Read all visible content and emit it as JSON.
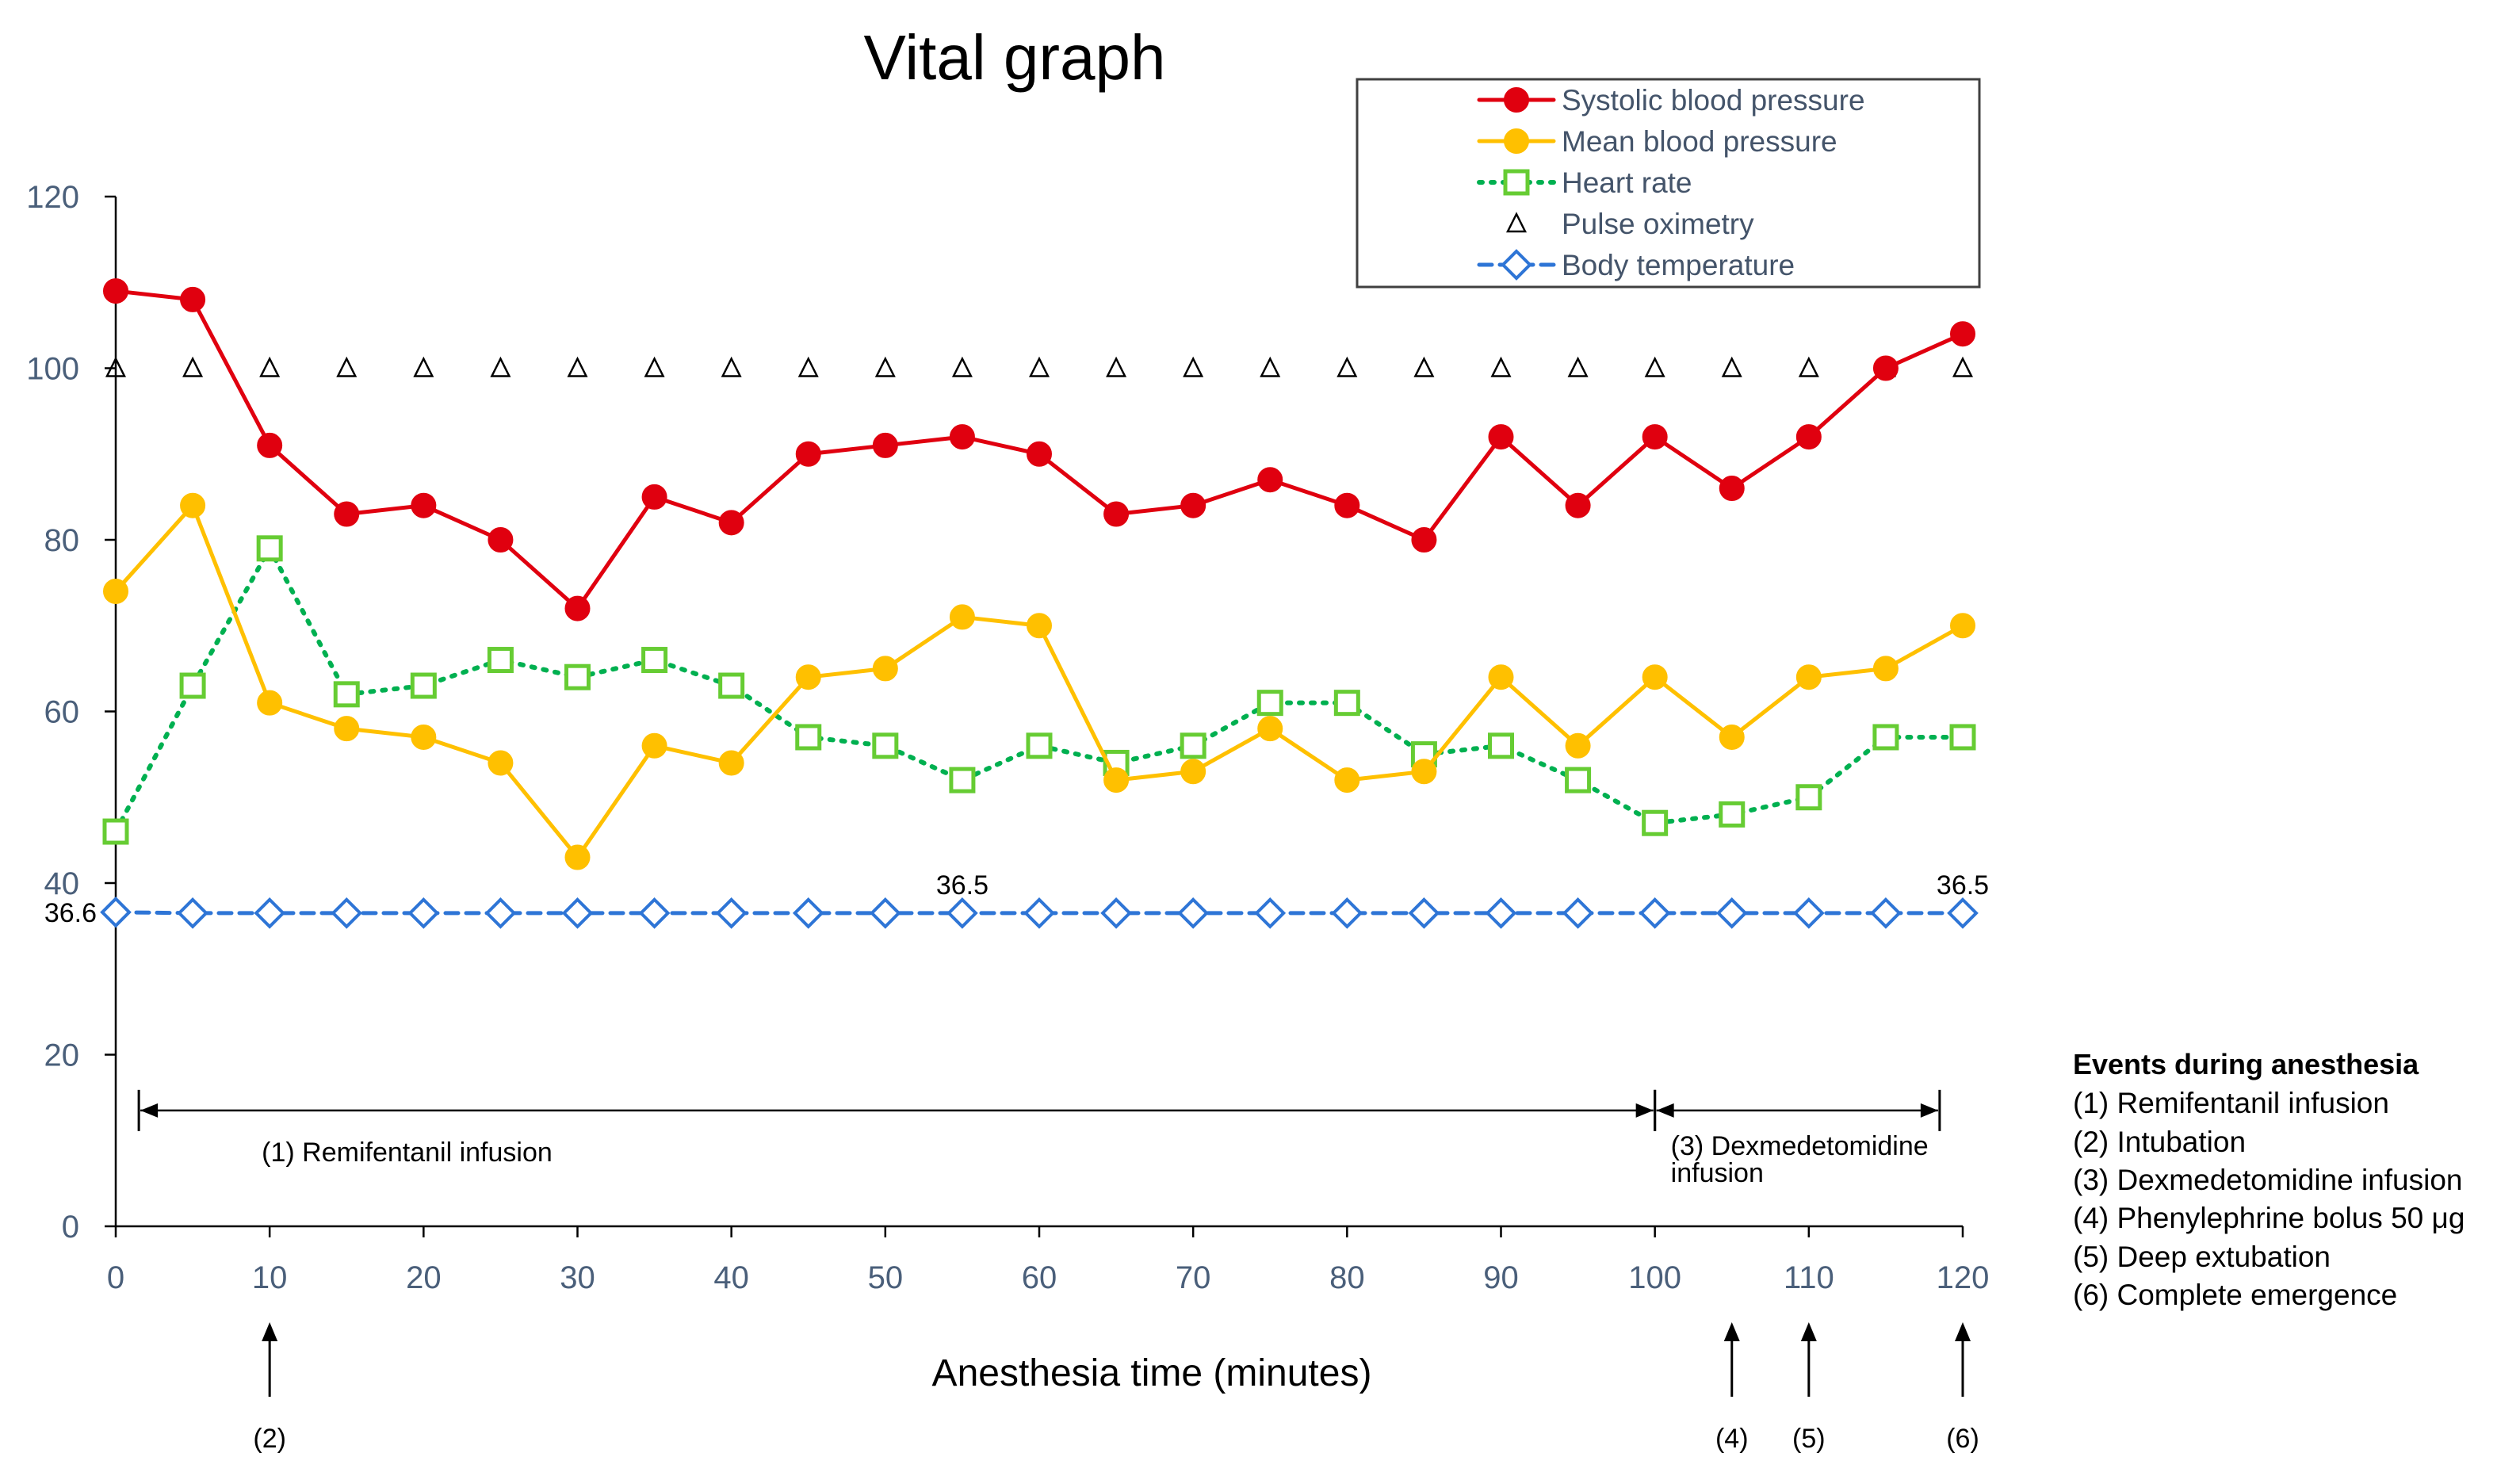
{
  "chart_data": {
    "type": "line",
    "title": "Vital graph",
    "xlabel": "Anesthesia time (minutes)",
    "ylabel": "",
    "xlim": [
      0,
      120
    ],
    "ylim": [
      0,
      120
    ],
    "x": [
      0,
      5,
      10,
      15,
      20,
      25,
      30,
      35,
      40,
      45,
      50,
      55,
      60,
      65,
      70,
      75,
      80,
      85,
      90,
      95,
      100,
      105,
      110,
      115,
      120
    ],
    "x_ticks": [
      0,
      10,
      20,
      30,
      40,
      50,
      60,
      70,
      80,
      90,
      100,
      110,
      120
    ],
    "y_ticks": [
      0,
      20,
      40,
      60,
      80,
      100,
      120
    ],
    "series": [
      {
        "name": "Systolic blood pressure",
        "color": "#e0000f",
        "marker": "circle",
        "line": "solid",
        "values": [
          109,
          108,
          91,
          83,
          84,
          80,
          72,
          85,
          82,
          90,
          91,
          92,
          90,
          83,
          84,
          87,
          84,
          80,
          92,
          84,
          92,
          86,
          92,
          100,
          104
        ]
      },
      {
        "name": "Mean blood pressure",
        "color": "#ffc000",
        "marker": "circle",
        "line": "solid",
        "values": [
          74,
          84,
          61,
          58,
          57,
          54,
          43,
          56,
          54,
          64,
          65,
          71,
          70,
          52,
          53,
          58,
          52,
          53,
          64,
          56,
          64,
          57,
          64,
          65,
          70
        ]
      },
      {
        "name": "Heart rate",
        "color": "#00b050",
        "marker_color": "#66cc33",
        "marker": "square",
        "line": "dotted",
        "values": [
          46,
          63,
          79,
          62,
          63,
          66,
          64,
          66,
          63,
          57,
          56,
          52,
          56,
          54,
          56,
          61,
          61,
          55,
          56,
          52,
          47,
          48,
          50,
          57,
          57
        ]
      },
      {
        "name": "Pulse oximetry",
        "color": "#000000",
        "marker": "triangle",
        "line": "none",
        "values": [
          100,
          100,
          100,
          100,
          100,
          100,
          100,
          100,
          100,
          100,
          100,
          100,
          100,
          100,
          100,
          100,
          100,
          100,
          100,
          100,
          100,
          100,
          100,
          100,
          100
        ]
      },
      {
        "name": "Body temperature",
        "color": "#2e75d6",
        "marker": "diamond",
        "line": "dashed",
        "values": [
          36.6,
          36.5,
          36.5,
          36.5,
          36.5,
          36.5,
          36.5,
          36.5,
          36.5,
          36.5,
          36.5,
          36.5,
          36.5,
          36.5,
          36.5,
          36.5,
          36.5,
          36.5,
          36.5,
          36.5,
          36.5,
          36.5,
          36.5,
          36.5,
          36.5
        ]
      }
    ],
    "point_labels": [
      {
        "text": "36.6",
        "x": 0,
        "y": 36.6,
        "anchor": "left"
      },
      {
        "text": "36.5",
        "x": 55,
        "y": 36.5,
        "anchor": "above"
      },
      {
        "text": "36.5",
        "x": 120,
        "y": 36.5,
        "anchor": "above"
      }
    ],
    "intervals": [
      {
        "label": "(1) Remifentanil infusion",
        "start": 1.5,
        "end": 100,
        "y": 13.5
      },
      {
        "label_lines": [
          "(3) Dexmedetomidine",
          "infusion"
        ],
        "start": 100,
        "end": 118.5,
        "y": 13.5
      }
    ],
    "event_markers": [
      {
        "label": "(2)",
        "x": 10
      },
      {
        "label": "(4)",
        "x": 105
      },
      {
        "label": "(5)",
        "x": 110
      },
      {
        "label": "(6)",
        "x": 120
      }
    ],
    "legend_position": "top-right",
    "grid": false
  },
  "events_panel": {
    "title": "Events during anesthesia",
    "items": [
      "(1)  Remifentanil infusion",
      "(2)  Intubation",
      "(3) Dexmedetomidine infusion",
      "(4) Phenylephrine bolus 50 μg",
      "(5) Deep extubation",
      "(6) Complete emergence"
    ]
  }
}
